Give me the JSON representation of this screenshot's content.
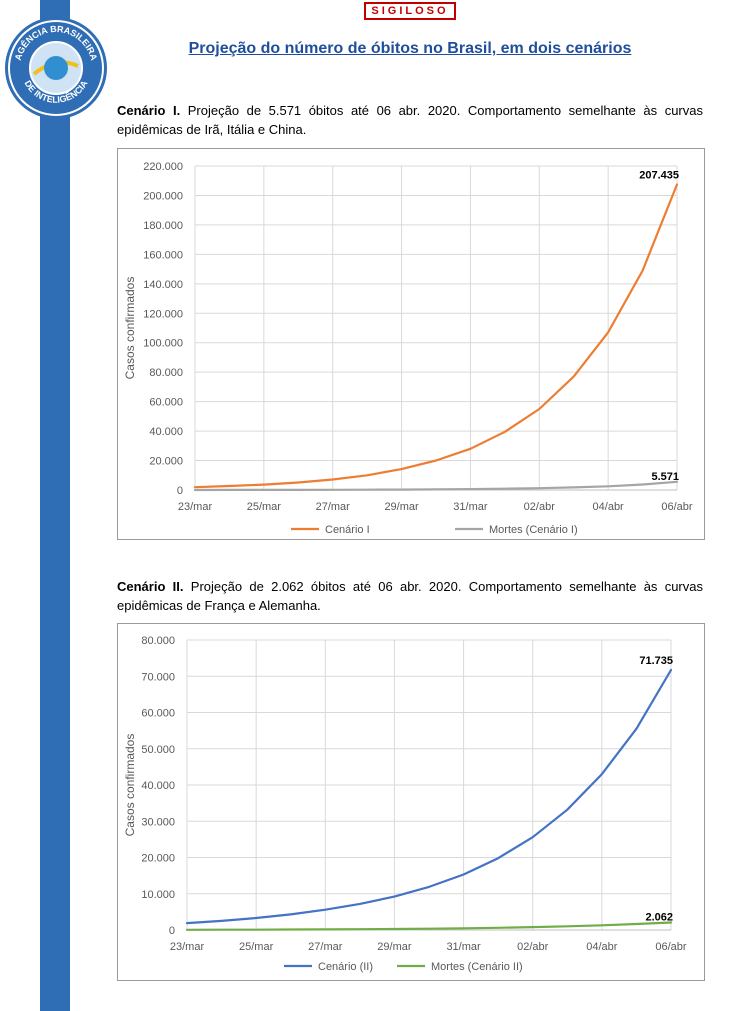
{
  "header": {
    "classification": "SIGILOSO",
    "title": "Projeção do número de óbitos no Brasil, em dois cenários",
    "logo_top_text": "AGÊNCIA BRASILEIRA",
    "logo_bottom_text": "DE INTELIGÊNCIA"
  },
  "colors": {
    "sidebar": "#2f6db5",
    "title": "#1f4e9c",
    "classification": "#c00000",
    "orange": "#ed7d31",
    "gray": "#a5a5a5",
    "blue": "#4472c4",
    "green": "#70ad47"
  },
  "scenario1": {
    "label": "Cenário I.",
    "text": "Projeção de 5.571 óbitos até 06 abr. 2020. Comportamento semelhante às curvas epidêmicas de Irã, Itália e China."
  },
  "scenario2": {
    "label": "Cenário II.",
    "text": "Projeção de 2.062 óbitos até 06 abr. 2020. Comportamento semelhante às curvas epidêmicas de França e Alemanha."
  },
  "chart_data": [
    {
      "type": "line",
      "title": "",
      "xlabel": "",
      "ylabel": "Casos confirmados",
      "ylim": [
        0,
        220000
      ],
      "yticks": [
        0,
        20000,
        40000,
        60000,
        80000,
        100000,
        120000,
        140000,
        160000,
        180000,
        200000,
        220000
      ],
      "ytick_labels": [
        "0",
        "20.000",
        "40.000",
        "60.000",
        "80.000",
        "100.000",
        "120.000",
        "140.000",
        "160.000",
        "180.000",
        "200.000",
        "220.000"
      ],
      "x_tick_labels": [
        "23/mar",
        "25/mar",
        "27/mar",
        "29/mar",
        "31/mar",
        "02/abr",
        "04/abr",
        "06/abr"
      ],
      "grid": true,
      "legend": "bottom",
      "series": [
        {
          "name": "Cenário I",
          "color": "#ed7d31",
          "values": [
            1900,
            2700,
            3700,
            5100,
            7100,
            10000,
            14200,
            20000,
            28000,
            39500,
            55000,
            77000,
            107000,
            149000,
            207435
          ]
        },
        {
          "name": "Mortes (Cenário I)",
          "color": "#a5a5a5",
          "values": [
            30,
            45,
            65,
            95,
            140,
            200,
            290,
            420,
            600,
            860,
            1230,
            1760,
            2520,
            3750,
            5571
          ]
        }
      ],
      "annotations": [
        "207.435",
        "5.571"
      ]
    },
    {
      "type": "line",
      "title": "",
      "xlabel": "",
      "ylabel": "Casos confirmados",
      "ylim": [
        0,
        80000
      ],
      "yticks": [
        0,
        10000,
        20000,
        30000,
        40000,
        50000,
        60000,
        70000,
        80000
      ],
      "ytick_labels": [
        "0",
        "10.000",
        "20.000",
        "30.000",
        "40.000",
        "50.000",
        "60.000",
        "70.000",
        "80.000"
      ],
      "x_tick_labels": [
        "23/mar",
        "25/mar",
        "27/mar",
        "29/mar",
        "31/mar",
        "02/abr",
        "04/abr",
        "06/abr"
      ],
      "grid": true,
      "legend": "bottom",
      "series": [
        {
          "name": "Cenário (II)",
          "color": "#4472c4",
          "values": [
            1900,
            2500,
            3300,
            4300,
            5600,
            7200,
            9200,
            11900,
            15300,
            19800,
            25600,
            33200,
            43000,
            55500,
            71735
          ]
        },
        {
          "name": "Mortes (Cenário II)",
          "color": "#70ad47",
          "values": [
            50,
            70,
            95,
            125,
            165,
            215,
            280,
            365,
            470,
            610,
            790,
            1020,
            1310,
            1650,
            2062
          ]
        }
      ],
      "annotations": [
        "71.735",
        "2.062"
      ]
    }
  ]
}
